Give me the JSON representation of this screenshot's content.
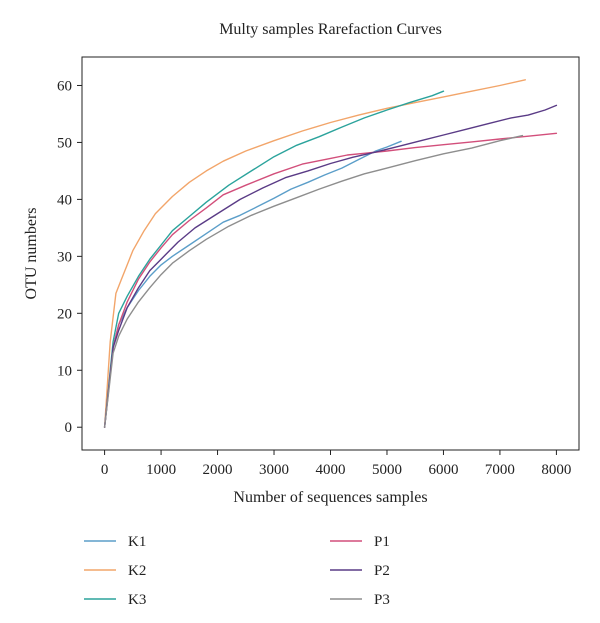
{
  "chart_data": {
    "type": "line",
    "title": "Multy samples Rarefaction Curves",
    "xlabel": "Number of sequences samples",
    "ylabel": "OTU numbers",
    "xlim": [
      -400,
      8400
    ],
    "ylim": [
      -4,
      65
    ],
    "xticks": [
      0,
      1000,
      2000,
      3000,
      4000,
      5000,
      6000,
      7000,
      8000
    ],
    "yticks": [
      0,
      10,
      20,
      30,
      40,
      50,
      60
    ],
    "grid": false,
    "legend_position": "bottom",
    "series": [
      {
        "name": "K1",
        "color": "#5b9ec9",
        "x": [
          0,
          150,
          250,
          400,
          600,
          800,
          1000,
          1200,
          1500,
          1800,
          2100,
          2400,
          2700,
          3000,
          3300,
          3600,
          3900,
          4200,
          4500,
          4800,
          5000,
          5250
        ],
        "y": [
          0,
          14,
          18,
          21,
          24,
          26.5,
          28.5,
          30,
          32,
          34,
          36,
          37.2,
          38.7,
          40.2,
          41.8,
          43,
          44.3,
          45.5,
          47,
          48.5,
          49.2,
          50.2
        ]
      },
      {
        "name": "K2",
        "color": "#f2a56a",
        "x": [
          0,
          100,
          200,
          300,
          400,
          500,
          700,
          900,
          1200,
          1500,
          1800,
          2100,
          2500,
          3000,
          3500,
          4000,
          4500,
          5000,
          5500,
          6000,
          6500,
          7000,
          7450
        ],
        "y": [
          0,
          15,
          23.5,
          26,
          28.5,
          31,
          34.5,
          37.5,
          40.5,
          43,
          45,
          46.7,
          48.5,
          50.3,
          52,
          53.5,
          54.8,
          56,
          57,
          58,
          59,
          60,
          61
        ]
      },
      {
        "name": "K3",
        "color": "#2ba39c",
        "x": [
          0,
          150,
          250,
          400,
          600,
          800,
          1000,
          1200,
          1500,
          1800,
          2200,
          2600,
          3000,
          3400,
          3800,
          4200,
          4600,
          5000,
          5400,
          5800,
          6000
        ],
        "y": [
          0,
          15,
          20,
          23,
          26.5,
          29.5,
          32,
          34.5,
          37,
          39.5,
          42.5,
          45,
          47.5,
          49.5,
          51,
          52.7,
          54.3,
          55.7,
          57,
          58.2,
          59
        ]
      },
      {
        "name": "P1",
        "color": "#d24f7b",
        "x": [
          0,
          150,
          250,
          400,
          600,
          800,
          1000,
          1200,
          1500,
          1800,
          2100,
          2500,
          3000,
          3500,
          4000,
          4300,
          4600,
          5000,
          5500,
          6000,
          6500,
          7000,
          7500,
          8000
        ],
        "y": [
          0,
          14,
          18,
          22,
          26,
          29,
          31.5,
          33.8,
          36.3,
          38.5,
          40.8,
          42.5,
          44.5,
          46.2,
          47.2,
          47.8,
          48.1,
          48.5,
          49.1,
          49.6,
          50.1,
          50.6,
          51.1,
          51.6
        ]
      },
      {
        "name": "P2",
        "color": "#5a3b86",
        "x": [
          0,
          150,
          250,
          400,
          600,
          800,
          1000,
          1300,
          1600,
          2000,
          2400,
          2800,
          3200,
          3600,
          4000,
          4400,
          4800,
          5200,
          5600,
          6000,
          6400,
          6800,
          7200,
          7500,
          7800,
          8000
        ],
        "y": [
          0,
          14,
          17,
          21,
          24.5,
          27.5,
          29.5,
          32.5,
          35,
          37.5,
          40,
          42,
          43.8,
          45,
          46.3,
          47.4,
          48.3,
          49.3,
          50.3,
          51.3,
          52.3,
          53.3,
          54.3,
          54.8,
          55.7,
          56.5
        ]
      },
      {
        "name": "P3",
        "color": "#8e8e8e",
        "x": [
          0,
          150,
          250,
          400,
          600,
          800,
          1000,
          1200,
          1500,
          1800,
          2200,
          2600,
          3000,
          3400,
          3800,
          4200,
          4600,
          5000,
          5500,
          6000,
          6500,
          7000,
          7400
        ],
        "y": [
          0,
          13,
          16,
          19,
          22,
          24.5,
          26.8,
          28.8,
          31,
          33,
          35.3,
          37.2,
          38.8,
          40.3,
          41.8,
          43.2,
          44.5,
          45.5,
          46.8,
          48,
          49,
          50.3,
          51.2
        ]
      }
    ]
  }
}
